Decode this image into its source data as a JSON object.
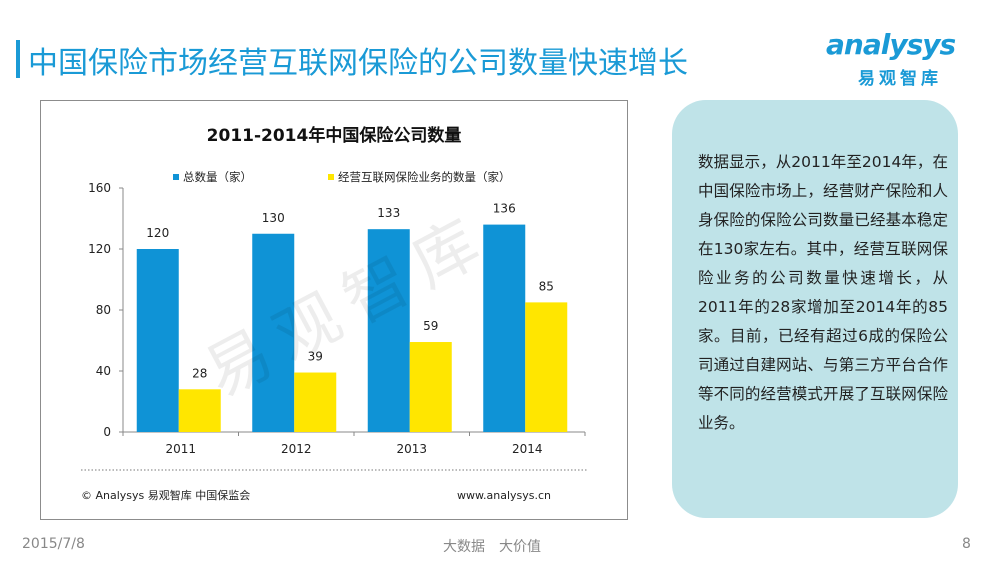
{
  "header": {
    "title": "中国保险市场经营互联网保险的公司数量快速增长"
  },
  "logo": {
    "word": "analysys",
    "cn": "易观智库"
  },
  "side_panel": {
    "text": "数据显示，从2011年至2014年，在中国保险市场上，经营财产保险和人身保险的保险公司数量已经基本稳定在130家左右。其中，经营互联网保险业务的公司数量快速增长，从2011年的28家增加至2014年的85家。目前，已经有超过6成的保险公司通过自建网站、与第三方平台合作等不同的经营模式开展了互联网保险业务。"
  },
  "footer": {
    "date": "2015/7/8",
    "slogan": "大数据　大价值",
    "page": "8"
  },
  "chart_source": "© Analysys 易观智库 中国保监会",
  "chart_url": "www.analysys.cn",
  "watermark": "易观智库",
  "chart_data": {
    "type": "bar",
    "title": "2011-2014年中国保险公司数量",
    "categories": [
      "2011",
      "2012",
      "2013",
      "2014"
    ],
    "series": [
      {
        "name": "总数量（家）",
        "values": [
          120,
          130,
          133,
          136
        ],
        "color": "#0f93d6"
      },
      {
        "name": "经营互联网保险业务的数量（家）",
        "values": [
          28,
          39,
          59,
          85
        ],
        "color": "#ffe600"
      }
    ],
    "ylim": [
      0,
      160
    ],
    "yticks": [
      0,
      40,
      80,
      120,
      160
    ],
    "grid": false,
    "legend_position": "top"
  }
}
